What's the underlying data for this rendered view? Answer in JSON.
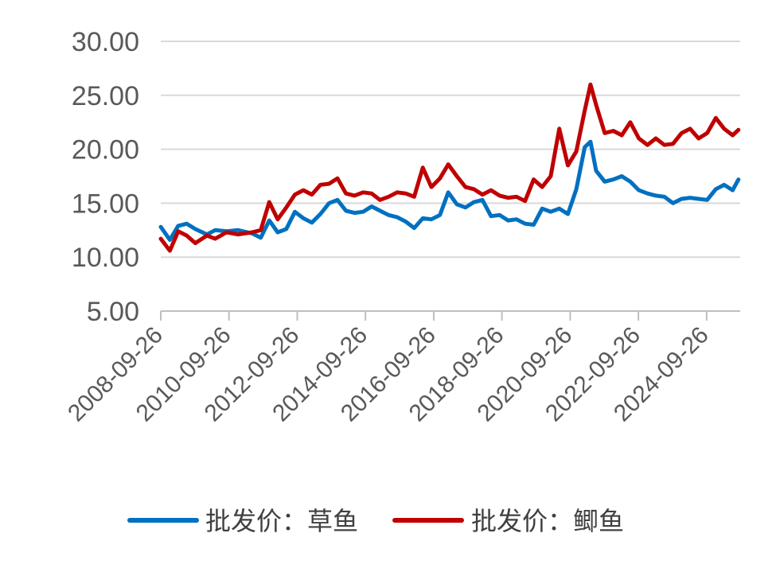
{
  "chart_data": {
    "type": "line",
    "title": "",
    "xlabel": "",
    "ylabel": "",
    "ylim": [
      5,
      30
    ],
    "yticks": [
      "5.00",
      "10.00",
      "15.00",
      "20.00",
      "25.00",
      "30.00"
    ],
    "xticks": [
      "2008-09-26",
      "2010-09-26",
      "2012-09-26",
      "2014-09-26",
      "2016-09-26",
      "2018-09-26",
      "2020-09-26",
      "2022-09-26",
      "2024-09-26"
    ],
    "grid": "horizontal",
    "legend": "bottom",
    "series": [
      {
        "name": "批发价：草鱼",
        "color": "#0070c0",
        "points": [
          [
            "2008-09-26",
            12.8
          ],
          [
            "2009-01-01",
            11.6
          ],
          [
            "2009-04-01",
            12.9
          ],
          [
            "2009-07-01",
            13.1
          ],
          [
            "2009-10-01",
            12.6
          ],
          [
            "2010-02-01",
            12.1
          ],
          [
            "2010-05-01",
            12.5
          ],
          [
            "2010-09-01",
            12.4
          ],
          [
            "2011-01-01",
            12.5
          ],
          [
            "2011-06-01",
            12.2
          ],
          [
            "2011-09-01",
            11.8
          ],
          [
            "2011-12-01",
            13.4
          ],
          [
            "2012-03-01",
            12.3
          ],
          [
            "2012-06-01",
            12.6
          ],
          [
            "2012-09-01",
            14.2
          ],
          [
            "2012-12-01",
            13.6
          ],
          [
            "2013-03-01",
            13.2
          ],
          [
            "2013-06-01",
            14.0
          ],
          [
            "2013-09-01",
            15.0
          ],
          [
            "2013-12-01",
            15.3
          ],
          [
            "2014-03-01",
            14.3
          ],
          [
            "2014-06-01",
            14.1
          ],
          [
            "2014-09-01",
            14.2
          ],
          [
            "2014-12-01",
            14.7
          ],
          [
            "2015-03-01",
            14.3
          ],
          [
            "2015-06-01",
            13.9
          ],
          [
            "2015-09-01",
            13.7
          ],
          [
            "2015-12-01",
            13.3
          ],
          [
            "2016-03-01",
            12.7
          ],
          [
            "2016-06-01",
            13.6
          ],
          [
            "2016-09-01",
            13.5
          ],
          [
            "2016-12-01",
            13.9
          ],
          [
            "2017-03-01",
            16.0
          ],
          [
            "2017-06-01",
            14.9
          ],
          [
            "2017-09-01",
            14.6
          ],
          [
            "2017-12-01",
            15.1
          ],
          [
            "2018-03-01",
            15.3
          ],
          [
            "2018-06-01",
            13.8
          ],
          [
            "2018-09-01",
            13.9
          ],
          [
            "2018-12-01",
            13.4
          ],
          [
            "2019-03-01",
            13.5
          ],
          [
            "2019-06-01",
            13.1
          ],
          [
            "2019-09-01",
            13.0
          ],
          [
            "2019-12-01",
            14.5
          ],
          [
            "2020-03-01",
            14.2
          ],
          [
            "2020-06-01",
            14.5
          ],
          [
            "2020-09-01",
            14.0
          ],
          [
            "2020-12-01",
            16.3
          ],
          [
            "2021-03-01",
            20.2
          ],
          [
            "2021-05-01",
            20.7
          ],
          [
            "2021-07-01",
            18.0
          ],
          [
            "2021-10-01",
            17.0
          ],
          [
            "2022-01-01",
            17.2
          ],
          [
            "2022-04-01",
            17.5
          ],
          [
            "2022-07-01",
            17.0
          ],
          [
            "2022-10-01",
            16.2
          ],
          [
            "2023-01-01",
            15.9
          ],
          [
            "2023-04-01",
            15.7
          ],
          [
            "2023-07-01",
            15.6
          ],
          [
            "2023-10-01",
            15.0
          ],
          [
            "2024-01-01",
            15.4
          ],
          [
            "2024-04-01",
            15.5
          ],
          [
            "2024-07-01",
            15.4
          ],
          [
            "2024-10-01",
            15.3
          ],
          [
            "2025-01-01",
            16.3
          ],
          [
            "2025-04-01",
            16.7
          ],
          [
            "2025-07-01",
            16.2
          ],
          [
            "2025-09-01",
            17.2
          ]
        ]
      },
      {
        "name": "批发价：鲫鱼",
        "color": "#c00000",
        "points": [
          [
            "2008-09-26",
            11.7
          ],
          [
            "2009-01-01",
            10.6
          ],
          [
            "2009-04-01",
            12.4
          ],
          [
            "2009-07-01",
            12.0
          ],
          [
            "2009-10-01",
            11.3
          ],
          [
            "2010-02-01",
            12.0
          ],
          [
            "2010-05-01",
            11.7
          ],
          [
            "2010-09-01",
            12.3
          ],
          [
            "2011-01-01",
            12.1
          ],
          [
            "2011-06-01",
            12.3
          ],
          [
            "2011-09-01",
            12.5
          ],
          [
            "2011-12-01",
            15.1
          ],
          [
            "2012-03-01",
            13.5
          ],
          [
            "2012-06-01",
            14.6
          ],
          [
            "2012-09-01",
            15.8
          ],
          [
            "2012-12-01",
            16.2
          ],
          [
            "2013-03-01",
            15.8
          ],
          [
            "2013-06-01",
            16.7
          ],
          [
            "2013-09-01",
            16.8
          ],
          [
            "2013-12-01",
            17.3
          ],
          [
            "2014-03-01",
            15.9
          ],
          [
            "2014-06-01",
            15.7
          ],
          [
            "2014-09-01",
            16.0
          ],
          [
            "2014-12-01",
            15.9
          ],
          [
            "2015-03-01",
            15.3
          ],
          [
            "2015-06-01",
            15.6
          ],
          [
            "2015-09-01",
            16.0
          ],
          [
            "2015-12-01",
            15.9
          ],
          [
            "2016-03-01",
            15.6
          ],
          [
            "2016-06-01",
            18.3
          ],
          [
            "2016-09-01",
            16.5
          ],
          [
            "2016-12-01",
            17.3
          ],
          [
            "2017-03-01",
            18.6
          ],
          [
            "2017-06-01",
            17.5
          ],
          [
            "2017-09-01",
            16.5
          ],
          [
            "2017-12-01",
            16.3
          ],
          [
            "2018-03-01",
            15.8
          ],
          [
            "2018-06-01",
            16.2
          ],
          [
            "2018-09-01",
            15.7
          ],
          [
            "2018-12-01",
            15.5
          ],
          [
            "2019-03-01",
            15.6
          ],
          [
            "2019-06-01",
            15.2
          ],
          [
            "2019-09-01",
            17.2
          ],
          [
            "2019-12-01",
            16.5
          ],
          [
            "2020-03-01",
            17.5
          ],
          [
            "2020-06-01",
            21.9
          ],
          [
            "2020-09-01",
            18.5
          ],
          [
            "2020-12-01",
            19.8
          ],
          [
            "2021-03-01",
            23.6
          ],
          [
            "2021-05-01",
            26.0
          ],
          [
            "2021-07-01",
            24.1
          ],
          [
            "2021-10-01",
            21.5
          ],
          [
            "2022-01-01",
            21.7
          ],
          [
            "2022-04-01",
            21.3
          ],
          [
            "2022-07-01",
            22.5
          ],
          [
            "2022-10-01",
            21.0
          ],
          [
            "2023-01-01",
            20.4
          ],
          [
            "2023-04-01",
            21.0
          ],
          [
            "2023-07-01",
            20.4
          ],
          [
            "2023-10-01",
            20.5
          ],
          [
            "2024-01-01",
            21.5
          ],
          [
            "2024-04-01",
            21.9
          ],
          [
            "2024-07-01",
            21.0
          ],
          [
            "2024-10-01",
            21.5
          ],
          [
            "2025-01-01",
            22.9
          ],
          [
            "2025-04-01",
            21.9
          ],
          [
            "2025-07-01",
            21.3
          ],
          [
            "2025-09-01",
            21.8
          ]
        ]
      }
    ]
  }
}
